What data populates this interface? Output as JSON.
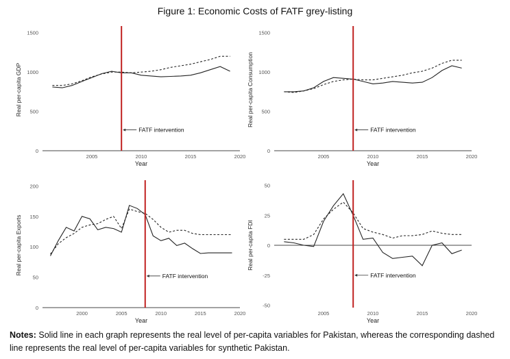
{
  "figure_title": "Figure 1: Economic Costs of FATF grey-listing",
  "notes": {
    "label": "Notes:",
    "text": "Solid line in each graph represents the real level of per-capita variables for Pakistan, whereas the corresponding dashed line represents the real level of per-capita variables for synthetic Pakistan."
  },
  "colors": {
    "actual": "#222222",
    "synthetic": "#222222",
    "intervention": "#c0201f",
    "axis": "#444444"
  },
  "chart_data": [
    {
      "type": "line",
      "ylabel": "Real per-capita GDP",
      "xlabel": "Year",
      "xlim": [
        2000,
        2020
      ],
      "ylim": [
        0,
        1550
      ],
      "yticks": [
        0,
        500,
        1000,
        1500
      ],
      "xticks": [
        2005,
        2010,
        2015,
        2020
      ],
      "intervention_year": 2008,
      "annotation": "FATF intervention",
      "annotation_y": 265,
      "series": [
        {
          "style": "solid",
          "x": [
            2001,
            2002,
            2003,
            2004,
            2005,
            2006,
            2007,
            2008,
            2009,
            2010,
            2011,
            2012,
            2013,
            2014,
            2015,
            2016,
            2017,
            2018,
            2019
          ],
          "y": [
            810,
            800,
            830,
            880,
            930,
            980,
            1010,
            990,
            990,
            960,
            950,
            940,
            945,
            950,
            960,
            990,
            1030,
            1070,
            1010
          ]
        },
        {
          "style": "dashed",
          "x": [
            2001,
            2002,
            2003,
            2004,
            2005,
            2006,
            2007,
            2008,
            2009,
            2010,
            2011,
            2012,
            2013,
            2014,
            2015,
            2016,
            2017,
            2018,
            2019
          ],
          "y": [
            830,
            830,
            850,
            890,
            940,
            975,
            1000,
            1000,
            990,
            1000,
            1010,
            1030,
            1060,
            1080,
            1100,
            1130,
            1160,
            1200,
            1200
          ]
        }
      ]
    },
    {
      "type": "line",
      "ylabel": "Real per-capita Consumption",
      "xlabel": "Year",
      "xlim": [
        2000,
        2020
      ],
      "ylim": [
        0,
        1550
      ],
      "yticks": [
        0,
        500,
        1000,
        1500
      ],
      "xticks": [
        2005,
        2010,
        2015,
        2020
      ],
      "intervention_year": 2008,
      "annotation": "FATF intervention",
      "annotation_y": 265,
      "series": [
        {
          "style": "solid",
          "x": [
            2001,
            2002,
            2003,
            2004,
            2005,
            2006,
            2007,
            2008,
            2009,
            2010,
            2011,
            2012,
            2013,
            2014,
            2015,
            2016,
            2017,
            2018,
            2019
          ],
          "y": [
            750,
            750,
            760,
            800,
            880,
            930,
            920,
            910,
            880,
            850,
            860,
            880,
            870,
            860,
            870,
            930,
            1020,
            1080,
            1050
          ]
        },
        {
          "style": "dashed",
          "x": [
            2001,
            2002,
            2003,
            2004,
            2005,
            2006,
            2007,
            2008,
            2009,
            2010,
            2011,
            2012,
            2013,
            2014,
            2015,
            2016,
            2017,
            2018,
            2019
          ],
          "y": [
            750,
            740,
            760,
            790,
            840,
            880,
            900,
            910,
            900,
            900,
            920,
            940,
            960,
            990,
            1010,
            1050,
            1110,
            1150,
            1150
          ]
        }
      ]
    },
    {
      "type": "line",
      "ylabel": "Real per-capita Exports",
      "xlabel": "Year",
      "xlim": [
        1995,
        2020
      ],
      "ylim": [
        0,
        205
      ],
      "yticks": [
        0,
        50,
        100,
        150,
        200
      ],
      "xticks": [
        2000,
        2005,
        2010,
        2015,
        2020
      ],
      "intervention_year": 2008,
      "annotation": "FATF intervention",
      "annotation_y": 52,
      "series": [
        {
          "style": "solid",
          "x": [
            1996,
            1997,
            1998,
            1999,
            2000,
            2001,
            2002,
            2003,
            2004,
            2005,
            2006,
            2007,
            2008,
            2009,
            2010,
            2011,
            2012,
            2013,
            2014,
            2015,
            2016,
            2017,
            2018,
            2019
          ],
          "y": [
            85,
            110,
            132,
            126,
            150,
            146,
            128,
            132,
            130,
            124,
            168,
            163,
            153,
            118,
            110,
            114,
            102,
            106,
            97,
            89,
            90,
            90,
            90,
            90
          ]
        },
        {
          "style": "dashed",
          "x": [
            1996,
            1997,
            1998,
            1999,
            2000,
            2001,
            2002,
            2003,
            2004,
            2005,
            2006,
            2007,
            2008,
            2009,
            2010,
            2011,
            2012,
            2013,
            2014,
            2015,
            2016,
            2017,
            2018,
            2019
          ],
          "y": [
            88,
            105,
            115,
            122,
            132,
            136,
            138,
            145,
            150,
            130,
            162,
            158,
            155,
            145,
            132,
            124,
            127,
            127,
            122,
            120,
            120,
            120,
            120,
            120
          ]
        }
      ]
    },
    {
      "type": "line",
      "ylabel": "Real per-capita FDI",
      "xlabel": "Year",
      "xlim": [
        2000,
        2020
      ],
      "ylim": [
        -52,
        52
      ],
      "yticks": [
        -50,
        -25,
        0,
        25,
        50
      ],
      "xticks": [
        2005,
        2010,
        2015,
        2020
      ],
      "intervention_year": 2008,
      "annotation": "FATF intervention",
      "annotation_y": -25,
      "series": [
        {
          "style": "solid",
          "x": [
            2001,
            2002,
            2003,
            2004,
            2005,
            2006,
            2007,
            2008,
            2009,
            2010,
            2011,
            2012,
            2013,
            2014,
            2015,
            2016,
            2017,
            2018,
            2019
          ],
          "y": [
            3,
            2,
            0,
            -1,
            20,
            33,
            43,
            25,
            5,
            6,
            -6,
            -11,
            -10,
            -9,
            -17,
            0,
            2,
            -7,
            -4
          ]
        },
        {
          "style": "dashed",
          "x": [
            2001,
            2002,
            2003,
            2004,
            2005,
            2006,
            2007,
            2008,
            2009,
            2010,
            2011,
            2012,
            2013,
            2014,
            2015,
            2016,
            2017,
            2018,
            2019
          ],
          "y": [
            5,
            5,
            5,
            9,
            22,
            30,
            36,
            27,
            14,
            11,
            9,
            6,
            8,
            8,
            9,
            12,
            10,
            9,
            9
          ]
        }
      ]
    }
  ]
}
